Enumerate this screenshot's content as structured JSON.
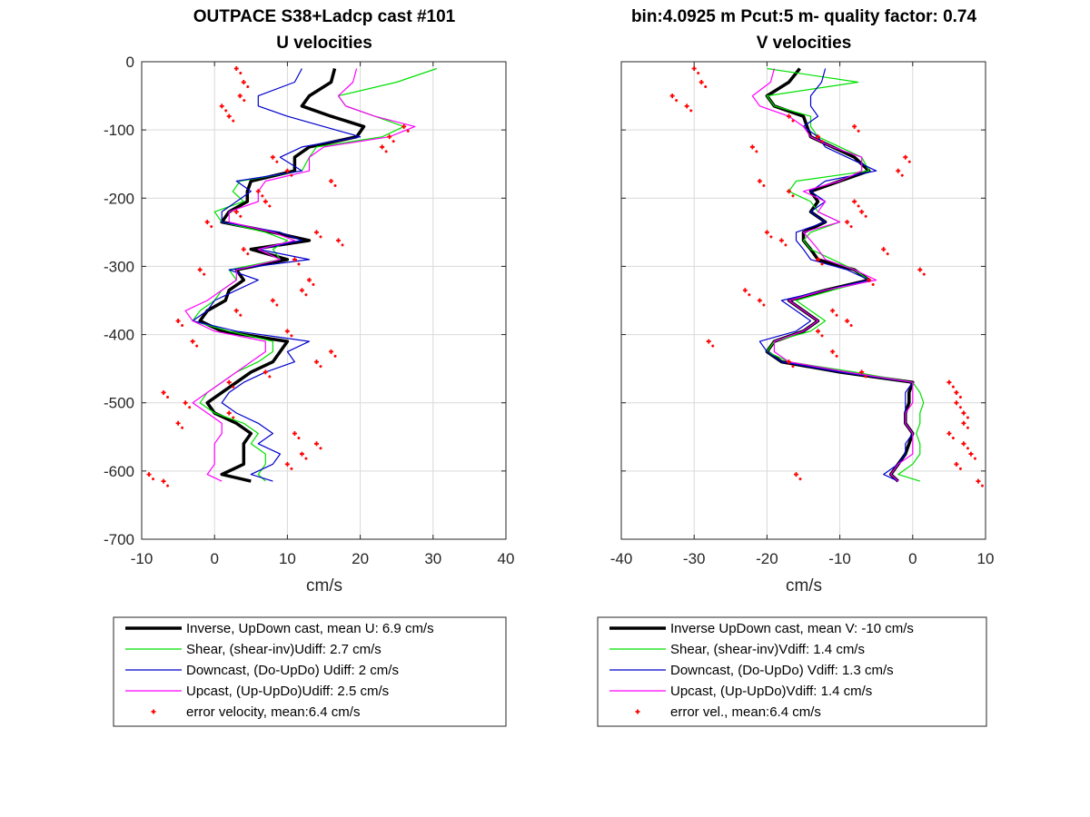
{
  "chart_data": [
    {
      "type": "line",
      "title": "OUTPACE S38+Ladcp cast #101",
      "subtitle": "U velocities",
      "xlabel": "cm/s",
      "ylabel": "",
      "xlim": [
        -10,
        40
      ],
      "ylim": [
        -700,
        0
      ],
      "xticks": [
        "-10",
        "0",
        "10",
        "20",
        "30",
        "40"
      ],
      "yticks": [
        "0",
        "-100",
        "-200",
        "-300",
        "-400",
        "-500",
        "-600",
        "-700"
      ],
      "grid": true,
      "legend_position": "below",
      "depths": [
        -10,
        -30,
        -50,
        -65,
        -80,
        -95,
        -110,
        -125,
        -140,
        -160,
        -175,
        -190,
        -205,
        -220,
        -235,
        -250,
        -262,
        -275,
        -290,
        -305,
        -320,
        -335,
        -350,
        -365,
        -380,
        -395,
        -410,
        -425,
        -440,
        -455,
        -470,
        -485,
        -500,
        -515,
        -530,
        -545,
        -560,
        -575,
        -590,
        -605,
        -615
      ],
      "series": [
        {
          "name": "Inverse, UpDown cast, mean U:  6.9 cm/s",
          "color": "#000000",
          "width": 3.5,
          "kind": "line",
          "values": [
            16.5,
            16,
            13,
            12,
            16,
            20.5,
            19.5,
            13,
            11,
            11,
            5,
            4.5,
            4.5,
            2,
            1,
            8,
            13,
            5,
            10,
            3,
            4,
            2,
            1.5,
            -1,
            -2,
            1,
            10,
            9,
            8,
            5,
            3,
            1,
            -1,
            0,
            3,
            5,
            4,
            4,
            4,
            1,
            5
          ]
        },
        {
          "name": "Shear, (shear-inv)Udiff:  2.7 cm/s",
          "color": "#00e000",
          "width": 1.2,
          "kind": "line",
          "values": [
            30.5,
            25,
            17,
            18,
            22,
            26,
            23,
            14,
            13,
            12,
            3.5,
            2.5,
            4,
            0,
            1,
            7,
            10,
            8,
            9,
            2,
            3,
            1,
            0,
            -2,
            -3,
            2,
            8,
            8,
            6,
            3,
            1,
            -1,
            -2,
            0,
            4,
            6,
            5,
            7,
            7,
            6,
            7
          ]
        },
        {
          "name": "Downcast, (Do-UpDo) Udiff:  2 cm/s",
          "color": "#0000cc",
          "width": 1.2,
          "kind": "line",
          "values": [
            12,
            11,
            6,
            6,
            10,
            15,
            20,
            12,
            9,
            12,
            3,
            5,
            3,
            1,
            1,
            9,
            12,
            6,
            13,
            2,
            6,
            3,
            0,
            -1,
            -3,
            3,
            13,
            10,
            11,
            7,
            4,
            2,
            1,
            3,
            6,
            8,
            6,
            9,
            8,
            5,
            8
          ]
        },
        {
          "name": "Upcast, (Up-UpDo)Udiff:  2.5 cm/s",
          "color": "#ff00ff",
          "width": 1.2,
          "kind": "line",
          "values": [
            19.5,
            19,
            17,
            18,
            22,
            27.5,
            24,
            15,
            13,
            13,
            7,
            6,
            6,
            2,
            2,
            8,
            11,
            6,
            9,
            3,
            3,
            1,
            -1,
            -4,
            -3,
            0,
            7,
            7,
            5,
            3,
            1,
            -1,
            -3,
            -1,
            1,
            1,
            0,
            0,
            0,
            -1,
            1
          ]
        },
        {
          "name": "error velocity, mean:6.4 cm/s",
          "color": "#ff0000",
          "width": 0,
          "kind": "points",
          "values": [
            3,
            4,
            3.5,
            1,
            2,
            26,
            24,
            23,
            8,
            10,
            16,
            6,
            7,
            3,
            -1,
            14,
            17,
            4,
            11,
            -2,
            13,
            12,
            8,
            3,
            -5,
            10,
            -3,
            16,
            14,
            7,
            2,
            -7,
            -4,
            2,
            -5,
            11,
            14,
            12,
            10,
            -9,
            -7
          ]
        }
      ]
    },
    {
      "type": "line",
      "title": "bin:4.0925 m  Pcut:5 m- quality factor:  0.74",
      "subtitle": "V velocities",
      "xlabel": "cm/s",
      "ylabel": "",
      "xlim": [
        -40,
        10
      ],
      "ylim": [
        -700,
        0
      ],
      "xticks": [
        "-40",
        "-30",
        "-20",
        "-10",
        "0",
        "10"
      ],
      "yticks": [],
      "grid": true,
      "legend_position": "below",
      "depths": [
        -10,
        -30,
        -50,
        -65,
        -80,
        -95,
        -110,
        -125,
        -140,
        -160,
        -175,
        -190,
        -205,
        -220,
        -235,
        -250,
        -262,
        -275,
        -290,
        -305,
        -320,
        -335,
        -350,
        -365,
        -380,
        -395,
        -410,
        -425,
        -440,
        -455,
        -470,
        -485,
        -500,
        -515,
        -530,
        -545,
        -560,
        -575,
        -590,
        -605,
        -615
      ],
      "series": [
        {
          "name": "Inverse UpDown cast, mean V:  -10 cm/s",
          "color": "#000000",
          "width": 3.5,
          "kind": "line",
          "values": [
            -15.5,
            -17,
            -20,
            -19,
            -15,
            -14.5,
            -14,
            -11,
            -8,
            -6,
            -10,
            -14,
            -13,
            -14,
            -12,
            -15,
            -15,
            -14,
            -13,
            -8,
            -6,
            -12,
            -17,
            -15,
            -13,
            -15,
            -19,
            -20,
            -18,
            -10,
            0,
            -0.5,
            -0.5,
            -1,
            -1,
            0,
            -0.5,
            -1,
            -2,
            -3,
            -2
          ]
        },
        {
          "name": "Shear, (shear-inv)Vdiff:  1.4 cm/s",
          "color": "#00e000",
          "width": 1.2,
          "kind": "line",
          "values": [
            -20,
            -7.5,
            -20,
            -19,
            -14,
            -14,
            -13,
            -10,
            -7,
            -6,
            -16,
            -17,
            -14,
            -13,
            -10,
            -14,
            -15,
            -14,
            -11,
            -8,
            -6,
            -11,
            -16,
            -14,
            -12,
            -14,
            -19,
            -20,
            -17,
            -8,
            0,
            1,
            1.5,
            1,
            1,
            0.5,
            1,
            1,
            0,
            -2,
            1
          ]
        },
        {
          "name": "Downcast, (Do-UpDo) Vdiff:  1.3 cm/s",
          "color": "#0000cc",
          "width": 1.2,
          "kind": "line",
          "values": [
            -12,
            -12.5,
            -14,
            -14,
            -13,
            -15,
            -13,
            -12,
            -9,
            -5,
            -12,
            -14,
            -12,
            -14,
            -12,
            -16,
            -16,
            -15,
            -14,
            -9,
            -6,
            -12,
            -18,
            -16,
            -14,
            -16,
            -21,
            -20,
            -18,
            -10,
            0,
            -1,
            -1,
            -1,
            -1,
            0,
            -1,
            -1,
            -2,
            -4,
            -2
          ]
        },
        {
          "name": "Upcast, (Up-UpDo)Vdiff:  1.4 cm/s",
          "color": "#ff00ff",
          "width": 1.2,
          "kind": "line",
          "values": [
            -19,
            -19.5,
            -22,
            -21,
            -17,
            -15,
            -14,
            -11,
            -7,
            -7,
            -10,
            -15,
            -12,
            -13,
            -10,
            -15,
            -14,
            -13,
            -12,
            -8,
            -5,
            -12,
            -17,
            -15,
            -13,
            -15,
            -19,
            -19,
            -17,
            -9,
            0,
            0,
            0,
            -1,
            -1,
            0,
            0,
            0,
            -2,
            -3,
            -2
          ]
        },
        {
          "name": "error vel., mean:6.4 cm/s",
          "color": "#ff0000",
          "width": 0,
          "kind": "points",
          "values": [
            -30,
            -29,
            -33,
            -31,
            -17,
            -8,
            -13,
            -22,
            -1,
            -2,
            -21,
            -17,
            -8,
            -7,
            -9,
            -20,
            -18,
            -4,
            -13,
            1,
            -6,
            -23,
            -21,
            -11,
            -9,
            -13,
            -28,
            -11,
            -17,
            -7,
            5,
            6,
            6,
            7,
            7,
            5,
            7,
            8,
            6,
            -16,
            9
          ]
        }
      ]
    }
  ],
  "legends": [
    [
      "Inverse, UpDown cast, mean U:  6.9 cm/s",
      "Shear, (shear-inv)Udiff:  2.7 cm/s",
      "Downcast, (Do-UpDo) Udiff:  2 cm/s",
      "Upcast, (Up-UpDo)Udiff:  2.5 cm/s",
      "error velocity, mean:6.4 cm/s"
    ],
    [
      "Inverse UpDown cast, mean V:  -10 cm/s",
      "Shear, (shear-inv)Vdiff:  1.4 cm/s",
      "Downcast, (Do-UpDo) Vdiff:  1.3 cm/s",
      "Upcast, (Up-UpDo)Vdiff:  1.4 cm/s",
      "error vel., mean:6.4 cm/s"
    ]
  ]
}
